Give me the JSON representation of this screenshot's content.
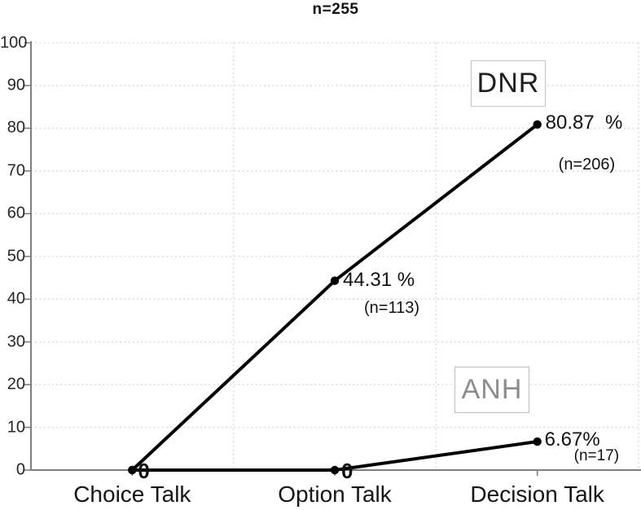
{
  "chart_data": {
    "type": "line",
    "title": "n=255",
    "categories": [
      "Choice Talk",
      "Option Talk",
      "Decision Talk"
    ],
    "series": [
      {
        "name": "DNR",
        "values": [
          0,
          44.31,
          80.87
        ],
        "counts": [
          null,
          113,
          206
        ],
        "color": "#000000"
      },
      {
        "name": "ANH",
        "values": [
          0,
          0,
          6.67
        ],
        "counts": [
          null,
          null,
          17
        ],
        "color": "#000000"
      }
    ],
    "ylim": [
      0,
      100
    ],
    "ytick_step": 10,
    "grid": "dotted",
    "legend_position": "annotation-boxes-right",
    "colors": {
      "grid": "#dadada",
      "axis": "#7f7f7f",
      "tick_text": "#262626",
      "dnr_label": "#1f1f1f",
      "anh_label": "#8c8c8c"
    },
    "point_labels": [
      {
        "category_index": 0,
        "series_index": 0,
        "text": "0"
      },
      {
        "category_index": 1,
        "series_index": 0,
        "text": "44.31 %",
        "count": "(n=113)"
      },
      {
        "category_index": 2,
        "series_index": 0,
        "text": "80.87  %",
        "count": "(n=206)"
      },
      {
        "category_index": 1,
        "series_index": 1,
        "text": "0"
      },
      {
        "category_index": 2,
        "series_index": 1,
        "text": "6.67%",
        "count": "(n=17)"
      }
    ]
  }
}
